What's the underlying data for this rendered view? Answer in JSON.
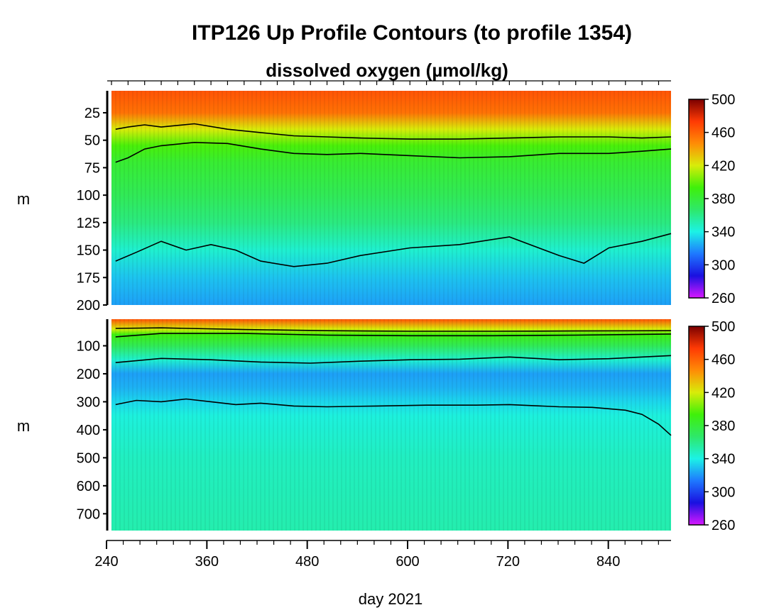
{
  "header": {
    "title": "ITP126 Up Profile Contours (to profile 1354)",
    "subtitle": "dissolved oxygen (µmol/kg)"
  },
  "colors": {
    "colormap": [
      "#d818ff",
      "#1a10e0",
      "#1e78ff",
      "#1cf2e6",
      "#2ee86a",
      "#3ff00a",
      "#d8ec0a",
      "#ff8c06",
      "#ff3a04",
      "#7a0000"
    ],
    "contour": "#000000"
  },
  "chart_data": [
    {
      "type": "heatmap",
      "name": "upper-panel",
      "xlabel": "",
      "ylabel": "m",
      "xlim": [
        240,
        915
      ],
      "ylim": [
        200,
        5
      ],
      "yticks": [
        25,
        50,
        75,
        100,
        125,
        150,
        175,
        200
      ],
      "colorbar": {
        "min": 260,
        "max": 500,
        "ticks": [
          260,
          300,
          340,
          380,
          420,
          460,
          500
        ],
        "unit": "µmol/kg"
      },
      "profile": [
        {
          "depth": 5,
          "value": 465
        },
        {
          "depth": 25,
          "value": 455
        },
        {
          "depth": 40,
          "value": 420
        },
        {
          "depth": 55,
          "value": 395
        },
        {
          "depth": 70,
          "value": 382
        },
        {
          "depth": 100,
          "value": 372
        },
        {
          "depth": 125,
          "value": 362
        },
        {
          "depth": 150,
          "value": 345
        },
        {
          "depth": 175,
          "value": 330
        },
        {
          "depth": 200,
          "value": 322
        }
      ],
      "contours": [
        {
          "level": 440,
          "x": [
            245,
            260,
            280,
            300,
            340,
            380,
            420,
            460,
            500,
            540,
            600,
            660,
            720,
            780,
            840,
            880,
            915
          ],
          "y": [
            40,
            38,
            36,
            38,
            35,
            40,
            43,
            46,
            47,
            48,
            49,
            49,
            48,
            47,
            47,
            48,
            47
          ]
        },
        {
          "level": 400,
          "x": [
            245,
            260,
            280,
            300,
            340,
            380,
            420,
            460,
            500,
            540,
            600,
            660,
            720,
            780,
            840,
            880,
            915
          ],
          "y": [
            70,
            66,
            58,
            55,
            52,
            53,
            58,
            62,
            63,
            62,
            64,
            66,
            65,
            62,
            62,
            60,
            58
          ]
        },
        {
          "level": 340,
          "x": [
            245,
            270,
            300,
            330,
            360,
            390,
            420,
            460,
            500,
            540,
            600,
            660,
            720,
            780,
            810,
            840,
            880,
            915
          ],
          "y": [
            160,
            152,
            142,
            150,
            145,
            150,
            160,
            165,
            162,
            155,
            148,
            145,
            138,
            155,
            162,
            148,
            142,
            135
          ]
        }
      ]
    },
    {
      "type": "heatmap",
      "name": "lower-panel",
      "xlabel": "day 2021",
      "ylabel": "m",
      "xlim": [
        240,
        915
      ],
      "ylim": [
        760,
        5
      ],
      "xticks": [
        240,
        360,
        480,
        600,
        720,
        840
      ],
      "yticks": [
        100,
        200,
        300,
        400,
        500,
        600,
        700
      ],
      "colorbar": {
        "min": 260,
        "max": 500,
        "ticks": [
          260,
          300,
          340,
          380,
          420,
          460,
          500
        ],
        "unit": "µmol/kg"
      },
      "profile": [
        {
          "depth": 5,
          "value": 465
        },
        {
          "depth": 40,
          "value": 420
        },
        {
          "depth": 60,
          "value": 392
        },
        {
          "depth": 100,
          "value": 372
        },
        {
          "depth": 150,
          "value": 345
        },
        {
          "depth": 200,
          "value": 322
        },
        {
          "depth": 250,
          "value": 326
        },
        {
          "depth": 300,
          "value": 334
        },
        {
          "depth": 350,
          "value": 342
        },
        {
          "depth": 500,
          "value": 348
        },
        {
          "depth": 760,
          "value": 352
        }
      ],
      "contours": [
        {
          "level": 440,
          "x": [
            245,
            300,
            400,
            500,
            600,
            700,
            800,
            915
          ],
          "y": [
            38,
            36,
            42,
            46,
            48,
            48,
            47,
            46
          ]
        },
        {
          "level": 400,
          "x": [
            245,
            300,
            400,
            500,
            600,
            700,
            800,
            915
          ],
          "y": [
            68,
            56,
            56,
            62,
            64,
            64,
            62,
            58
          ]
        },
        {
          "level": 340,
          "x": [
            245,
            300,
            360,
            420,
            480,
            540,
            600,
            660,
            720,
            780,
            840,
            915
          ],
          "y": [
            160,
            145,
            150,
            158,
            162,
            155,
            150,
            148,
            140,
            150,
            146,
            135
          ]
        },
        {
          "level": 345,
          "x": [
            245,
            270,
            300,
            330,
            360,
            390,
            420,
            460,
            500,
            560,
            620,
            680,
            720,
            780,
            820,
            860,
            880,
            900,
            915
          ],
          "y": [
            310,
            295,
            300,
            290,
            300,
            310,
            305,
            315,
            318,
            315,
            312,
            312,
            310,
            318,
            320,
            330,
            345,
            380,
            420
          ]
        }
      ]
    }
  ]
}
